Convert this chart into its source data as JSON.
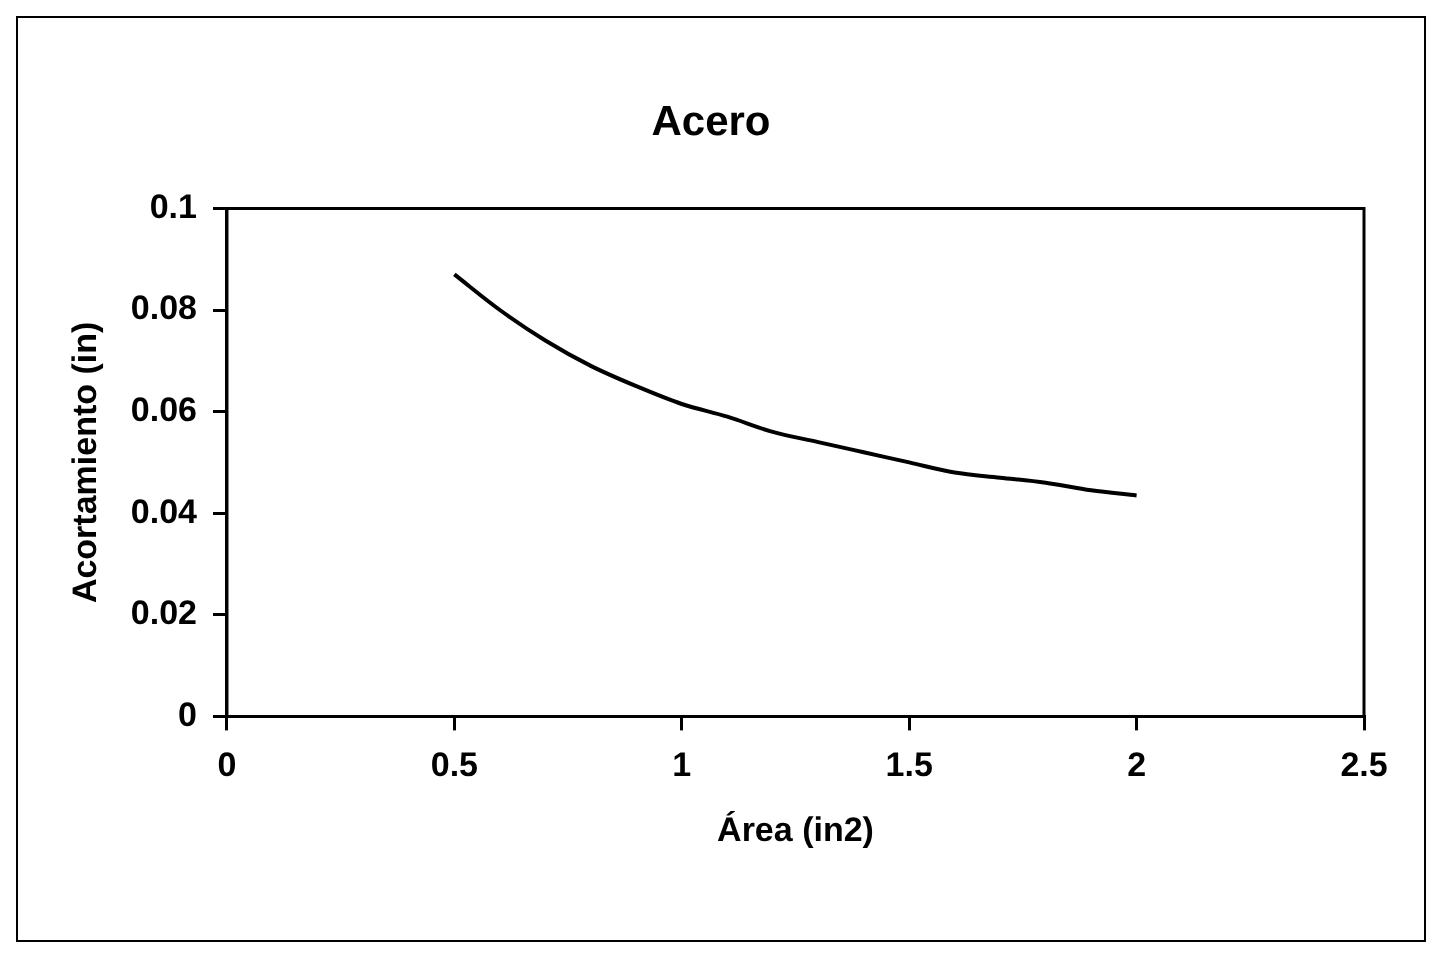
{
  "chart_data": {
    "type": "line",
    "title": "Acero",
    "xlabel": "Área (in2)",
    "ylabel": "Acortamiento (in)",
    "x": [
      0.5,
      0.6,
      0.7,
      0.8,
      0.9,
      1.0,
      1.1,
      1.2,
      1.3,
      1.4,
      1.5,
      1.6,
      1.7,
      1.8,
      1.9,
      2.0
    ],
    "series": [
      {
        "color": "#000000",
        "values": [
          0.087,
          0.08,
          0.074,
          0.069,
          0.065,
          0.0615,
          0.059,
          0.056,
          0.054,
          0.052,
          0.05,
          0.048,
          0.047,
          0.046,
          0.0445,
          0.0435
        ]
      }
    ],
    "xlim": [
      0,
      2.5
    ],
    "xticks": [
      0,
      0.5,
      1,
      1.5,
      2,
      2.5
    ],
    "ylim": [
      0,
      0.1
    ],
    "yticks": [
      0,
      0.02,
      0.04,
      0.06,
      0.08,
      0.1
    ],
    "grid": false,
    "legend": false,
    "marker": "none",
    "line_style": "solid"
  }
}
